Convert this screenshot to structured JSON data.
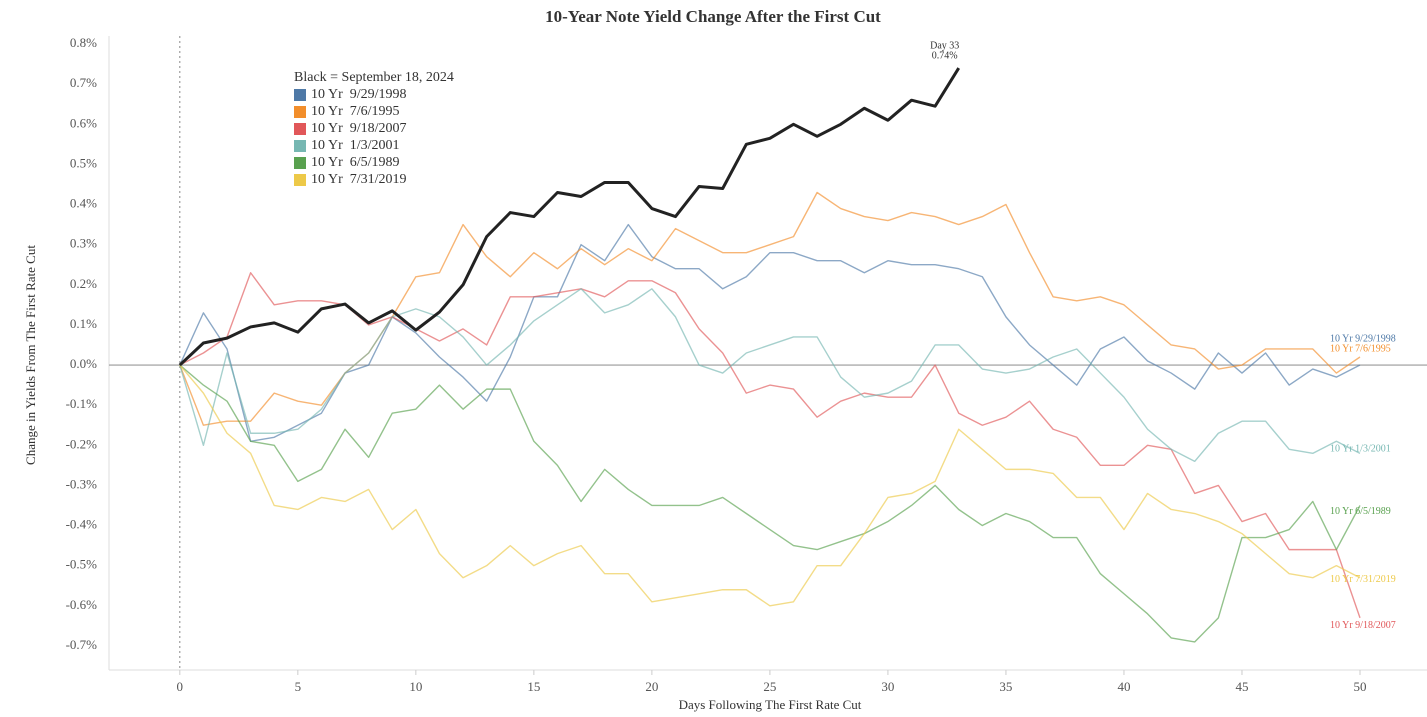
{
  "chart_data": {
    "type": "line",
    "title": "10-Year Note Yield Change After the First Cut",
    "x_label": "Days Following The First Rate Cut",
    "y_label": "Change in Yields From The First Rate Cut",
    "annotation": [
      "Day 33",
      "0.74%"
    ],
    "reference_x": 0,
    "xlim": [
      -3,
      52.5
    ],
    "ylim": [
      -0.76,
      0.82
    ],
    "xticks": [
      0,
      5,
      10,
      15,
      20,
      25,
      30,
      35,
      40,
      45,
      50
    ],
    "yticks": [
      {
        "value": 0.8,
        "label": "0.8%"
      },
      {
        "value": 0.7,
        "label": "0.7%"
      },
      {
        "value": 0.6,
        "label": "0.6%"
      },
      {
        "value": 0.5,
        "label": "0.5%"
      },
      {
        "value": 0.4,
        "label": "0.4%"
      },
      {
        "value": 0.3,
        "label": "0.3%"
      },
      {
        "value": 0.2,
        "label": "0.2%"
      },
      {
        "value": 0.1,
        "label": "0.1%"
      },
      {
        "value": 0,
        "label": "0.0%"
      },
      {
        "value": -0.1,
        "label": "-0.1%"
      },
      {
        "value": -0.2,
        "label": "-0.2%"
      },
      {
        "value": -0.3,
        "label": "-0.3%"
      },
      {
        "value": -0.4,
        "label": "-0.4%"
      },
      {
        "value": -0.5,
        "label": "-0.5%"
      },
      {
        "value": -0.6,
        "label": "-0.6%"
      },
      {
        "value": -0.7,
        "label": "-0.7%"
      }
    ],
    "x": [
      0,
      1,
      2,
      3,
      4,
      5,
      6,
      7,
      8,
      9,
      10,
      11,
      12,
      13,
      14,
      15,
      16,
      17,
      18,
      19,
      20,
      21,
      22,
      23,
      24,
      25,
      26,
      27,
      28,
      29,
      30,
      31,
      32,
      33,
      34,
      35,
      36,
      37,
      38,
      39,
      40,
      41,
      42,
      43,
      44,
      45,
      46,
      47,
      48,
      49,
      50
    ],
    "series": [
      {
        "name": "10 Yr  9/29/1998",
        "color": "#4e79a7",
        "values": [
          0,
          0.13,
          0.04,
          -0.19,
          -0.18,
          -0.15,
          -0.12,
          -0.02,
          0.0,
          0.12,
          0.08,
          0.02,
          -0.03,
          -0.09,
          0.02,
          0.17,
          0.17,
          0.3,
          0.26,
          0.35,
          0.27,
          0.24,
          0.24,
          0.19,
          0.22,
          0.28,
          0.28,
          0.26,
          0.26,
          0.23,
          0.26,
          0.25,
          0.25,
          0.24,
          0.22,
          0.12,
          0.05,
          0.0,
          -0.05,
          0.04,
          0.07,
          0.01,
          -0.02,
          -0.06,
          0.03,
          -0.02,
          0.03,
          -0.05,
          -0.01,
          -0.03,
          0.0
        ]
      },
      {
        "name": "10 Yr  7/6/1995",
        "color": "#f28e2b",
        "values": [
          0,
          -0.15,
          -0.14,
          -0.14,
          -0.07,
          -0.09,
          -0.1,
          -0.02,
          0.03,
          0.12,
          0.22,
          0.23,
          0.35,
          0.27,
          0.22,
          0.28,
          0.24,
          0.29,
          0.25,
          0.29,
          0.26,
          0.34,
          0.31,
          0.28,
          0.28,
          0.3,
          0.32,
          0.43,
          0.39,
          0.37,
          0.36,
          0.38,
          0.37,
          0.35,
          0.37,
          0.4,
          0.28,
          0.17,
          0.16,
          0.17,
          0.15,
          0.1,
          0.05,
          0.04,
          -0.01,
          0.0,
          0.04,
          0.04,
          0.04,
          -0.02,
          0.02
        ]
      },
      {
        "name": "10 Yr  9/18/2007",
        "color": "#e15759",
        "values": [
          0,
          0.03,
          0.07,
          0.23,
          0.15,
          0.16,
          0.16,
          0.15,
          0.1,
          0.12,
          0.09,
          0.06,
          0.09,
          0.05,
          0.17,
          0.17,
          0.18,
          0.19,
          0.17,
          0.21,
          0.21,
          0.18,
          0.09,
          0.03,
          -0.07,
          -0.05,
          -0.06,
          -0.13,
          -0.09,
          -0.07,
          -0.08,
          -0.08,
          0.0,
          -0.12,
          -0.15,
          -0.13,
          -0.09,
          -0.16,
          -0.18,
          -0.25,
          -0.25,
          -0.2,
          -0.21,
          -0.32,
          -0.3,
          -0.39,
          -0.37,
          -0.46,
          -0.46,
          -0.46,
          -0.63
        ]
      },
      {
        "name": "10 Yr  1/3/2001",
        "color": "#76b7b2",
        "values": [
          0,
          -0.2,
          0.03,
          -0.17,
          -0.17,
          -0.16,
          -0.11,
          -0.02,
          0.03,
          0.12,
          0.14,
          0.12,
          0.07,
          0.0,
          0.05,
          0.11,
          0.15,
          0.19,
          0.13,
          0.15,
          0.19,
          0.12,
          0.0,
          -0.02,
          0.03,
          0.05,
          0.07,
          0.07,
          -0.03,
          -0.08,
          -0.07,
          -0.04,
          0.05,
          0.05,
          -0.01,
          -0.02,
          -0.01,
          0.02,
          0.04,
          -0.02,
          -0.08,
          -0.16,
          -0.21,
          -0.24,
          -0.17,
          -0.14,
          -0.14,
          -0.21,
          -0.22,
          -0.19,
          -0.22
        ]
      },
      {
        "name": "10 Yr  6/5/1989",
        "color": "#59a14f",
        "values": [
          0,
          -0.05,
          -0.09,
          -0.19,
          -0.2,
          -0.29,
          -0.26,
          -0.16,
          -0.23,
          -0.12,
          -0.11,
          -0.05,
          -0.11,
          -0.06,
          -0.06,
          -0.19,
          -0.25,
          -0.34,
          -0.26,
          -0.31,
          -0.35,
          -0.35,
          -0.35,
          -0.33,
          -0.37,
          -0.41,
          -0.45,
          -0.46,
          -0.44,
          -0.42,
          -0.39,
          -0.35,
          -0.3,
          -0.36,
          -0.4,
          -0.37,
          -0.39,
          -0.43,
          -0.43,
          -0.52,
          -0.57,
          -0.62,
          -0.68,
          -0.69,
          -0.63,
          -0.43,
          -0.43,
          -0.41,
          -0.34,
          -0.46,
          -0.35
        ]
      },
      {
        "name": "10 Yr  7/31/2019",
        "color": "#edc948",
        "values": [
          0,
          -0.07,
          -0.17,
          -0.22,
          -0.35,
          -0.36,
          -0.33,
          -0.34,
          -0.31,
          -0.41,
          -0.36,
          -0.47,
          -0.53,
          -0.5,
          -0.45,
          -0.5,
          -0.47,
          -0.45,
          -0.52,
          -0.52,
          -0.59,
          -0.58,
          -0.57,
          -0.56,
          -0.56,
          -0.6,
          -0.59,
          -0.5,
          -0.5,
          -0.42,
          -0.33,
          -0.32,
          -0.29,
          -0.16,
          -0.21,
          -0.26,
          -0.26,
          -0.27,
          -0.33,
          -0.33,
          -0.41,
          -0.32,
          -0.36,
          -0.37,
          -0.39,
          -0.42,
          -0.47,
          -0.52,
          -0.53,
          -0.5,
          -0.53
        ]
      },
      {
        "name": "Black = September 18, 2024",
        "color": "#222222",
        "values": [
          0,
          0.055,
          0.067,
          0.095,
          0.105,
          0.082,
          0.14,
          0.152,
          0.105,
          0.135,
          0.087,
          0.132,
          0.2,
          0.32,
          0.38,
          0.37,
          0.43,
          0.42,
          0.455,
          0.455,
          0.39,
          0.37,
          0.445,
          0.44,
          0.55,
          0.565,
          0.6,
          0.57,
          0.6,
          0.64,
          0.61,
          0.66,
          0.645,
          0.74,
          null,
          null,
          null,
          null,
          null,
          null,
          null,
          null,
          null,
          null,
          null,
          null,
          null,
          null,
          null,
          null,
          null
        ]
      }
    ]
  }
}
